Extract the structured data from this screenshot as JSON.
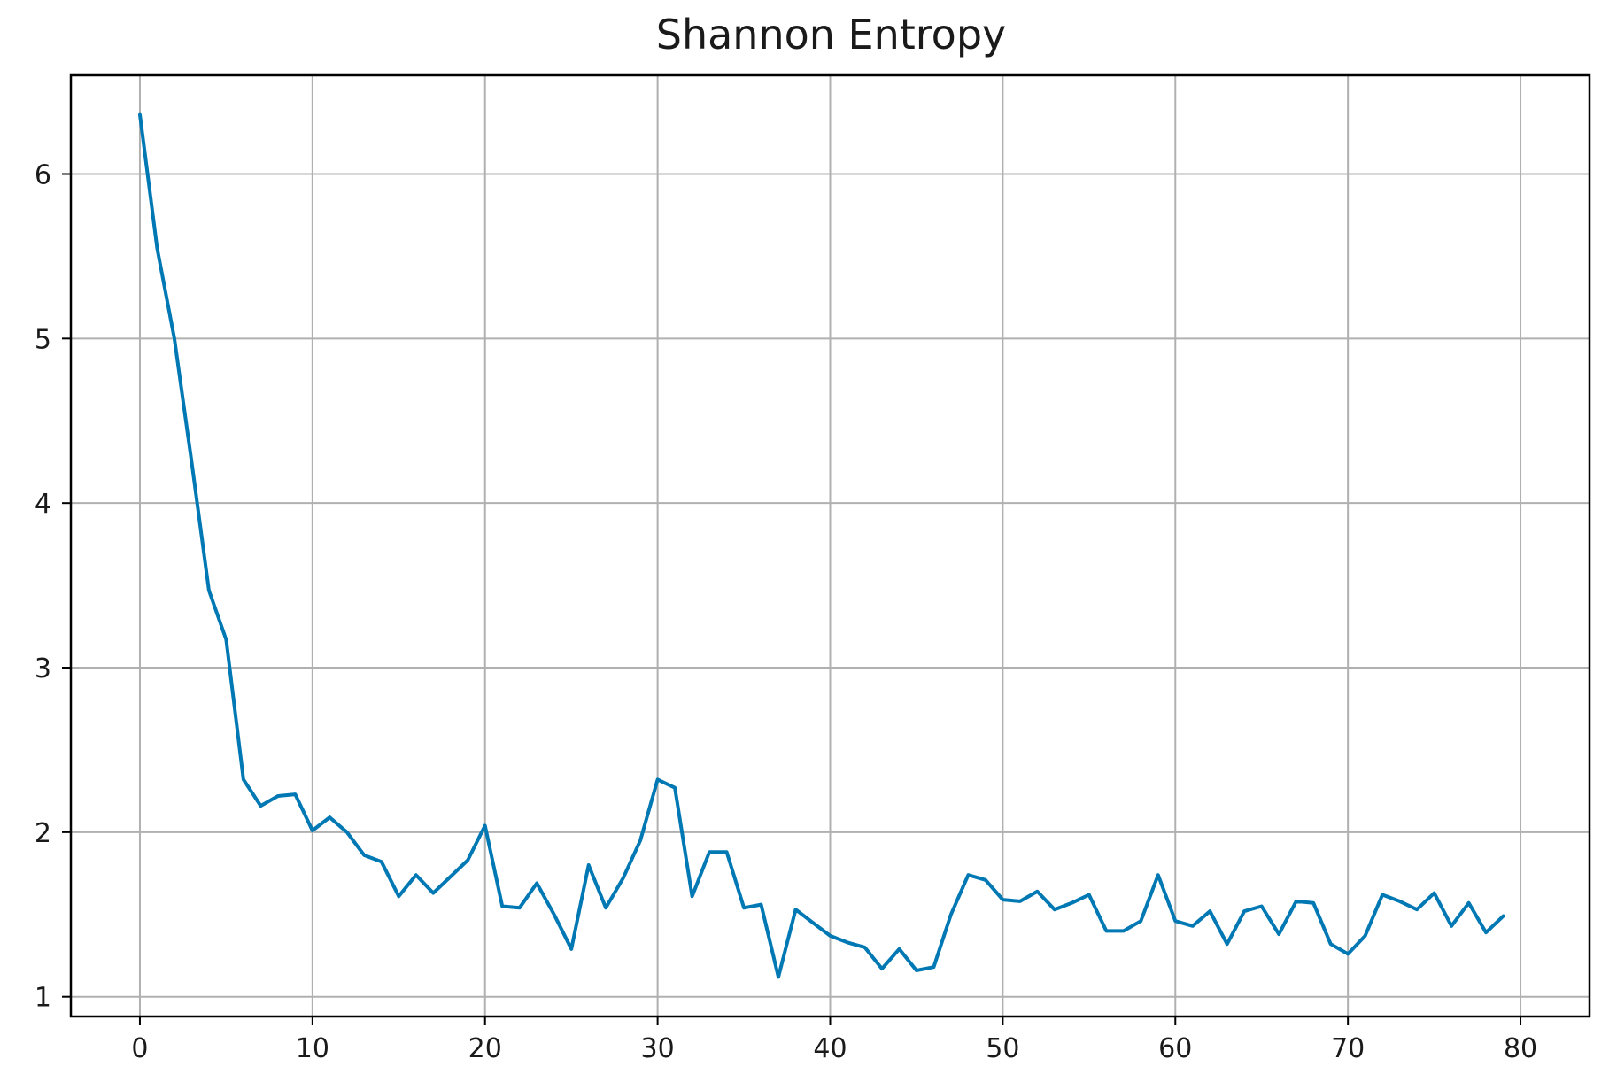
{
  "chart_data": {
    "type": "line",
    "title": "Shannon Entropy",
    "xlabel": "",
    "ylabel": "",
    "xlim": [
      -4,
      84
    ],
    "ylim": [
      0.88,
      6.6
    ],
    "xticks": [
      0,
      10,
      20,
      30,
      40,
      50,
      60,
      70,
      80
    ],
    "yticks": [
      1,
      2,
      3,
      4,
      5,
      6
    ],
    "grid": true,
    "legend": "none",
    "series": [
      {
        "color": "#0078b4",
        "x": [
          0,
          1,
          2,
          3,
          4,
          5,
          6,
          7,
          8,
          9,
          10,
          11,
          12,
          13,
          14,
          15,
          16,
          17,
          18,
          19,
          20,
          21,
          22,
          23,
          24,
          25,
          26,
          27,
          28,
          29,
          30,
          31,
          32,
          33,
          34,
          35,
          36,
          37,
          38,
          39,
          40,
          41,
          42,
          43,
          44,
          45,
          46,
          47,
          48,
          49,
          50,
          51,
          52,
          53,
          54,
          55,
          56,
          57,
          58,
          59,
          60,
          61,
          62,
          63,
          64,
          65,
          66,
          67,
          68,
          69,
          70,
          71,
          72,
          73,
          74,
          75,
          76,
          77,
          78,
          79
        ],
        "y": [
          6.36,
          5.55,
          5.0,
          4.25,
          3.47,
          3.17,
          2.32,
          2.16,
          2.22,
          2.23,
          2.01,
          2.09,
          2.0,
          1.86,
          1.82,
          1.61,
          1.74,
          1.63,
          1.73,
          1.83,
          2.04,
          1.55,
          1.54,
          1.69,
          1.5,
          1.29,
          1.8,
          1.54,
          1.72,
          1.95,
          2.32,
          2.27,
          1.61,
          1.88,
          1.88,
          1.54,
          1.56,
          1.12,
          1.53,
          1.45,
          1.37,
          1.33,
          1.3,
          1.17,
          1.29,
          1.16,
          1.18,
          1.5,
          1.74,
          1.71,
          1.59,
          1.58,
          1.64,
          1.53,
          1.57,
          1.62,
          1.4,
          1.4,
          1.46,
          1.74,
          1.46,
          1.43,
          1.52,
          1.32,
          1.52,
          1.55,
          1.38,
          1.58,
          1.57,
          1.32,
          1.26,
          1.37,
          1.62,
          1.58,
          1.53,
          1.63,
          1.43,
          1.57,
          1.39,
          1.49
        ]
      }
    ]
  }
}
